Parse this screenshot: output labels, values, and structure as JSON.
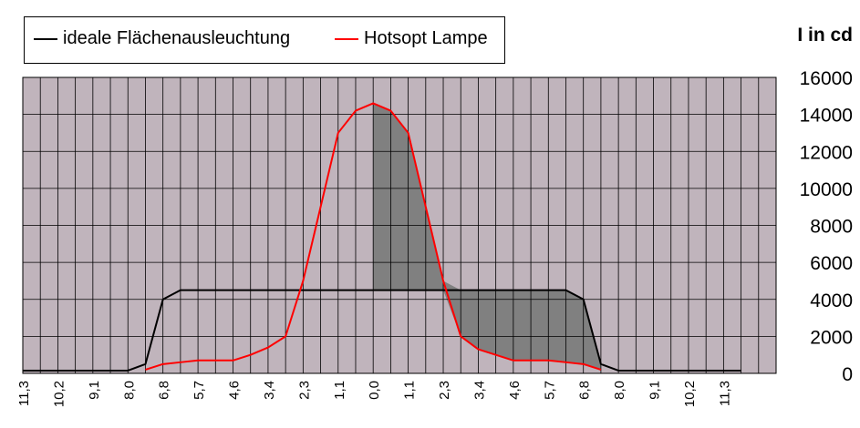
{
  "chart_data": {
    "type": "line",
    "title": "",
    "ylabel": "I in cd",
    "ylim": [
      0,
      16000
    ],
    "yticks": [
      0,
      2000,
      4000,
      6000,
      8000,
      10000,
      12000,
      14000,
      16000
    ],
    "grid": true,
    "legend_position": "top-left",
    "categories": [
      "11,3",
      "",
      "10,2",
      "",
      "9,1",
      "",
      "8,0",
      "",
      "6,8",
      "",
      "5,7",
      "",
      "4,6",
      "",
      "3,4",
      "",
      "2,3",
      "",
      "1,1",
      "",
      "0,0",
      "",
      "1,1",
      "",
      "2,3",
      "",
      "3,4",
      "",
      "4,6",
      "",
      "5,7",
      "",
      "6,8",
      "",
      "8,0",
      "",
      "9,1",
      "",
      "10,2",
      "",
      "11,3",
      "",
      "",
      ""
    ],
    "series": [
      {
        "name": "ideale Flächenausleuchtung",
        "color": "#000000",
        "values": [
          150,
          150,
          150,
          150,
          150,
          150,
          150,
          500,
          4000,
          4500,
          4500,
          4500,
          4500,
          4500,
          4500,
          4500,
          4500,
          4500,
          4500,
          4500,
          4500,
          4500,
          4500,
          4500,
          4500,
          4500,
          4500,
          4500,
          4500,
          4500,
          4500,
          4500,
          4000,
          500,
          150,
          150,
          150,
          150,
          150,
          150,
          150,
          150,
          null,
          null
        ]
      },
      {
        "name": "Hotsopt Lampe",
        "color": "#ff0000",
        "values": [
          null,
          null,
          null,
          null,
          null,
          null,
          null,
          200,
          500,
          600,
          700,
          700,
          700,
          1000,
          1400,
          2000,
          5000,
          9000,
          13000,
          14200,
          14600,
          14200,
          13000,
          9000,
          5000,
          2000,
          1300,
          1000,
          700,
          700,
          700,
          600,
          500,
          200,
          null,
          null,
          null,
          null,
          null,
          null,
          null,
          null,
          null,
          null
        ]
      }
    ],
    "colors": {
      "plot_bg": "#c0b4bc",
      "shade": "#808080",
      "grid": "#000000"
    }
  }
}
